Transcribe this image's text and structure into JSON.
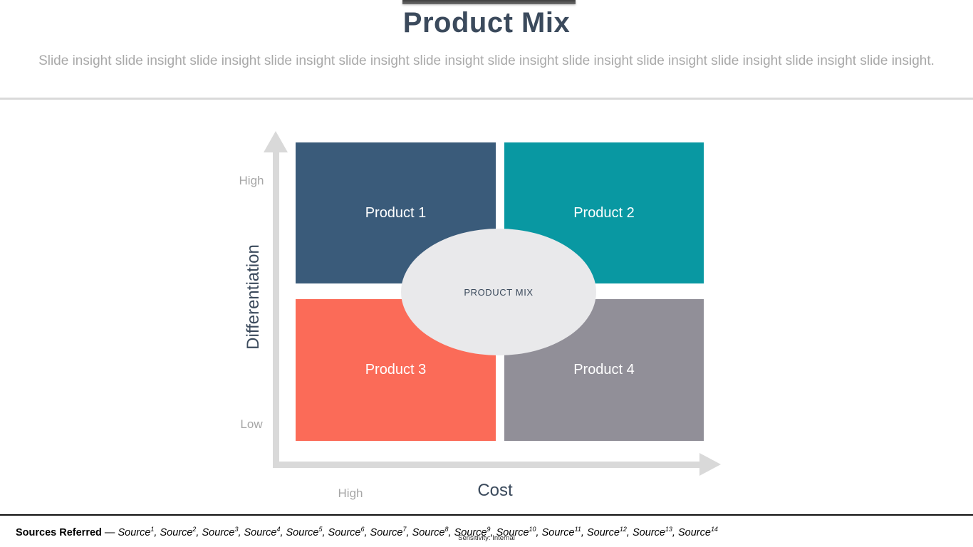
{
  "header": {
    "title": "Product Mix",
    "subtitle": "Slide insight slide insight slide insight slide insight slide insight slide insight slide insight slide insight slide insight slide insight slide insight slide insight."
  },
  "matrix": {
    "center_label": "PRODUCT MIX",
    "quadrants": [
      {
        "label": "Product 1",
        "color": "#3a5b7a"
      },
      {
        "label": "Product 2",
        "color": "#0998a2"
      },
      {
        "label": "Product 3",
        "color": "#fb6b58"
      },
      {
        "label": "Product 4",
        "color": "#918f98"
      }
    ],
    "y_axis": {
      "title": "Differentiation",
      "top_label": "High",
      "bottom_label": "Low"
    },
    "x_axis": {
      "title": "Cost",
      "label": "High"
    }
  },
  "footer": {
    "sources_heading": "Sources Referred",
    "separator": " — ",
    "source_base": "Source",
    "source_numbers": [
      "1",
      "2",
      "3",
      "4",
      "5",
      "6",
      "7",
      "8",
      "9",
      "10",
      "11",
      "12",
      "13",
      "14"
    ],
    "sensitivity": "Sensitivity: Internal"
  },
  "colors": {
    "title_text": "#3b4a5c",
    "subtitle_text": "#a9a9a9",
    "axis": "#d9d9d9",
    "axis_tick_text": "#a6a6a6",
    "axis_title_text": "#3b4a5c",
    "ellipse_fill": "#e9e9eb",
    "ellipse_text": "#3b4a5c",
    "top_bar": "#3f3f3f",
    "divider": "#dadada",
    "footer_rule": "#111111"
  }
}
